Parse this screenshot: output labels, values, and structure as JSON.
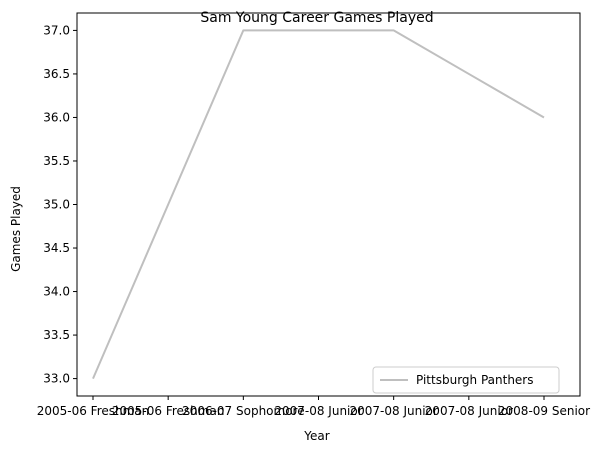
{
  "chart_data": {
    "type": "line",
    "title": "Sam Young  Career Games Played",
    "xlabel": "Year",
    "ylabel": "Games Played",
    "categories": [
      "2005-06 Freshman",
      "2005-06 Freshman",
      "2006-07 Sophomore",
      "2007-08 Junior",
      "2007-08 Junior",
      "2007-08 Junior",
      "2008-09 Senior"
    ],
    "series": [
      {
        "name": "Pittsburgh Panthers",
        "values": [
          33,
          35,
          37,
          37,
          37,
          36.5,
          36
        ],
        "color": "#bfbfbf"
      }
    ],
    "ylim": [
      32.8,
      37.2
    ],
    "yticks": [
      33.0,
      33.5,
      34.0,
      34.5,
      35.0,
      35.5,
      36.0,
      36.5,
      37.0
    ],
    "ytick_labels": [
      "33.0",
      "33.5",
      "34.0",
      "34.5",
      "35.0",
      "35.5",
      "36.0",
      "36.5",
      "37.0"
    ],
    "legend_position": "lower-right",
    "grid": false
  }
}
